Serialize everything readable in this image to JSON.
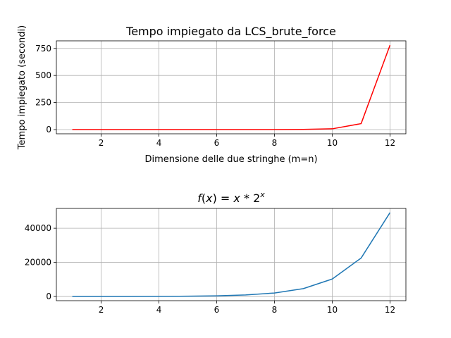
{
  "chart_data": [
    {
      "type": "line",
      "title": "Tempo impiegato da LCS_brute_force",
      "xlabel": "Dimensione delle due stringhe (m=n)",
      "ylabel": "Tempo impiegato (secondi)",
      "x": [
        1,
        2,
        3,
        4,
        5,
        6,
        7,
        8,
        9,
        10,
        11,
        12
      ],
      "series": [
        {
          "color": "#ff0000",
          "values": [
            0,
            0,
            0,
            0,
            0,
            0,
            0.1,
            0.3,
            1.5,
            7,
            55,
            780
          ]
        }
      ],
      "xlim": [
        0.45,
        12.55
      ],
      "ylim": [
        -39,
        820
      ],
      "xticks": [
        2,
        4,
        6,
        8,
        10,
        12
      ],
      "yticks": [
        0,
        250,
        500,
        750
      ],
      "xtick_labels": [
        "2",
        "4",
        "6",
        "8",
        "10",
        "12"
      ],
      "ytick_labels": [
        "0",
        "250",
        "500",
        "750"
      ],
      "grid": true
    },
    {
      "type": "line",
      "title": "f(x) = x * 2^x",
      "xlabel": "",
      "ylabel": "",
      "x": [
        1,
        2,
        3,
        4,
        5,
        6,
        7,
        8,
        9,
        10,
        11,
        12
      ],
      "series": [
        {
          "color": "#1f77b4",
          "values": [
            2,
            8,
            24,
            64,
            160,
            384,
            896,
            2048,
            4608,
            10240,
            22528,
            49152
          ]
        }
      ],
      "xlim": [
        0.45,
        12.55
      ],
      "ylim": [
        -2456,
        51606
      ],
      "xticks": [
        2,
        4,
        6,
        8,
        10,
        12
      ],
      "yticks": [
        0,
        20000,
        40000
      ],
      "xtick_labels": [
        "2",
        "4",
        "6",
        "8",
        "10",
        "12"
      ],
      "ytick_labels": [
        "0",
        "20000",
        "40000"
      ],
      "grid": true
    }
  ]
}
